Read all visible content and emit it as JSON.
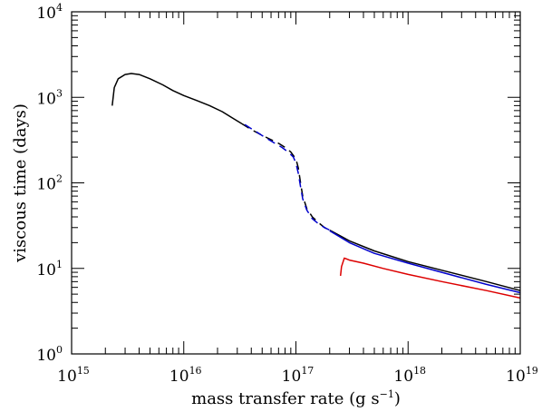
{
  "chart_data": {
    "type": "line",
    "xlabel": "mass transfer rate (g s",
    "xlabel_exp": "−1",
    "xlabel_close": ")",
    "ylabel": "viscous time (days)",
    "xscale": "log",
    "yscale": "log",
    "xlim": [
      1000000000000000.0,
      1e+19
    ],
    "ylim": [
      1,
      10000
    ],
    "x_ticks": [
      {
        "base": "10",
        "exp": "15",
        "value": 1000000000000000.0
      },
      {
        "base": "10",
        "exp": "16",
        "value": 1e+16
      },
      {
        "base": "10",
        "exp": "17",
        "value": 1e+17
      },
      {
        "base": "10",
        "exp": "18",
        "value": 1e+18
      },
      {
        "base": "10",
        "exp": "19",
        "value": 1e+19
      }
    ],
    "y_ticks": [
      {
        "base": "10",
        "exp": "0",
        "value": 1
      },
      {
        "base": "10",
        "exp": "1",
        "value": 10
      },
      {
        "base": "10",
        "exp": "2",
        "value": 100
      },
      {
        "base": "10",
        "exp": "3",
        "value": 1000
      },
      {
        "base": "10",
        "exp": "4",
        "value": 10000
      }
    ],
    "series": [
      {
        "color": "#000000",
        "dash": "solid",
        "points": [
          [
            2300000000000000.0,
            800
          ],
          [
            2400000000000000.0,
            1300
          ],
          [
            2600000000000000.0,
            1650
          ],
          [
            3000000000000000.0,
            1850
          ],
          [
            3400000000000000.0,
            1900
          ],
          [
            4000000000000000.0,
            1850
          ],
          [
            5000000000000000.0,
            1650
          ],
          [
            6500000000000000.0,
            1400
          ],
          [
            8000000000000000.0,
            1200
          ],
          [
            1e+16,
            1050
          ],
          [
            1.3e+16,
            920
          ],
          [
            1.7e+16,
            800
          ],
          [
            2.2e+16,
            680
          ],
          [
            2.8e+16,
            560
          ],
          [
            3.3e+16,
            490
          ]
        ]
      },
      {
        "color": "#000000",
        "dash": "dashed",
        "points": [
          [
            3.3e+16,
            490
          ],
          [
            4e+16,
            420
          ],
          [
            5e+16,
            360
          ],
          [
            6e+16,
            320
          ],
          [
            7e+16,
            290
          ],
          [
            8e+16,
            260
          ],
          [
            9e+16,
            230
          ],
          [
            1e+17,
            190
          ],
          [
            1.05e+17,
            150
          ],
          [
            1.1e+17,
            100
          ],
          [
            1.15e+17,
            70
          ],
          [
            1.25e+17,
            50
          ],
          [
            1.4e+17,
            40
          ],
          [
            1.6e+17,
            34
          ],
          [
            1.8e+17,
            30
          ],
          [
            2e+17,
            28
          ]
        ]
      },
      {
        "color": "#0000cc",
        "dash": "dashed",
        "points": [
          [
            3.5e+16,
            480
          ],
          [
            4.5e+16,
            390
          ],
          [
            5.5e+16,
            330
          ],
          [
            6.5e+16,
            290
          ],
          [
            7.5e+16,
            260
          ],
          [
            8.5e+16,
            230
          ],
          [
            9.5e+16,
            200
          ],
          [
            1e+17,
            170
          ],
          [
            1.05e+17,
            130
          ],
          [
            1.1e+17,
            90
          ],
          [
            1.15e+17,
            65
          ],
          [
            1.25e+17,
            48
          ],
          [
            1.4e+17,
            38
          ],
          [
            1.6e+17,
            33
          ],
          [
            1.8e+17,
            30
          ],
          [
            2e+17,
            28
          ]
        ]
      },
      {
        "color": "#000000",
        "dash": "solid",
        "points": [
          [
            2e+17,
            28
          ],
          [
            3e+17,
            21
          ],
          [
            5e+17,
            16
          ],
          [
            1e+18,
            12
          ],
          [
            2e+18,
            9.5
          ],
          [
            5e+18,
            7.0
          ],
          [
            1e+19,
            5.5
          ]
        ]
      },
      {
        "color": "#0000cc",
        "dash": "solid",
        "points": [
          [
            2e+17,
            27.5
          ],
          [
            3e+17,
            20
          ],
          [
            5e+17,
            15
          ],
          [
            1e+18,
            11.5
          ],
          [
            2e+18,
            9.0
          ],
          [
            5e+18,
            6.5
          ],
          [
            1e+19,
            5.2
          ]
        ]
      },
      {
        "color": "#dd0000",
        "dash": "solid",
        "points": [
          [
            2.5e+17,
            8.2
          ],
          [
            2.55e+17,
            10.5
          ],
          [
            2.7e+17,
            13.2
          ],
          [
            3e+17,
            12.5
          ],
          [
            4e+17,
            11.5
          ],
          [
            6e+17,
            10.0
          ],
          [
            1e+18,
            8.5
          ],
          [
            2e+18,
            7.0
          ],
          [
            5e+18,
            5.5
          ],
          [
            1e+19,
            4.5
          ]
        ]
      }
    ]
  }
}
